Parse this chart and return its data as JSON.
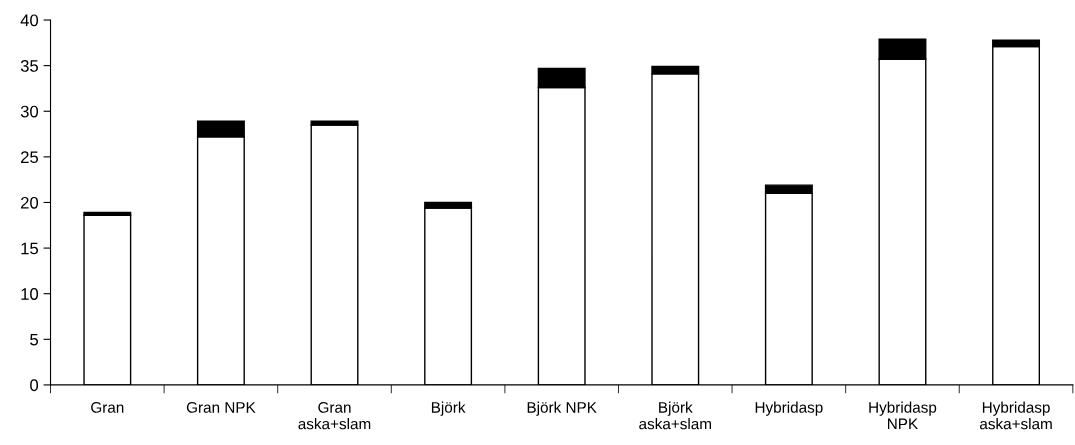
{
  "chart_data": {
    "type": "bar",
    "stacked": true,
    "categories": [
      "Gran",
      "Gran NPK",
      "Gran\naska+slam",
      "Björk",
      "Björk NPK",
      "Björk\naska+slam",
      "Hybridasp",
      "Hybridasp\nNPK",
      "Hybridasp\naska+slam"
    ],
    "series": [
      {
        "color": "#ffffff",
        "values": [
          18.6,
          27.2,
          28.5,
          19.4,
          32.6,
          34.1,
          21.0,
          35.7,
          37.1
        ]
      },
      {
        "color": "#000000",
        "values": [
          0.3,
          1.7,
          0.4,
          0.6,
          2.1,
          0.8,
          0.9,
          2.2,
          0.7
        ]
      }
    ],
    "ylim": [
      0,
      40
    ],
    "yticks": [
      0,
      5,
      10,
      15,
      20,
      25,
      30,
      35,
      40
    ],
    "grid": false,
    "legend": false
  }
}
